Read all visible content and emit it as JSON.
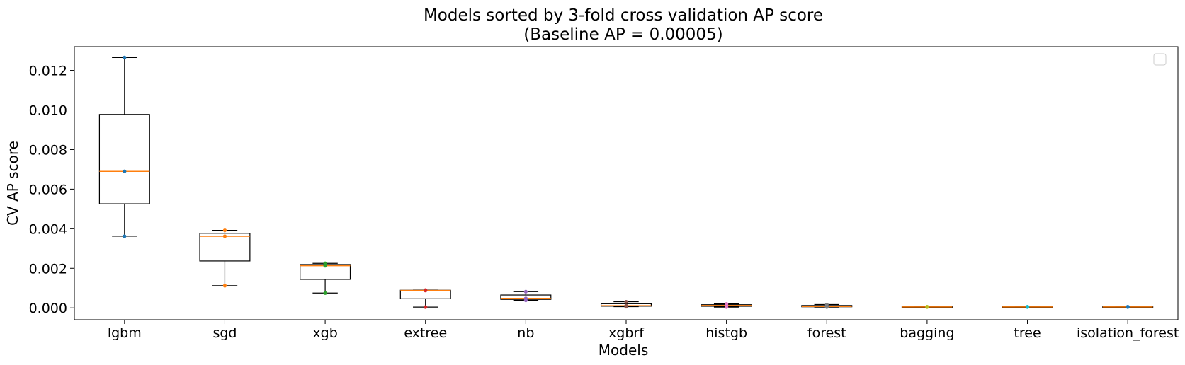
{
  "chart_data": {
    "type": "box",
    "title_lines": [
      "Models sorted by 3-fold cross validation AP score",
      "(Baseline AP = 0.00005)"
    ],
    "xlabel": "Models",
    "ylabel": "CV AP score",
    "ylim": [
      -0.0006,
      0.0132
    ],
    "yticks": [
      0.0,
      0.002,
      0.004,
      0.006,
      0.008,
      0.01,
      0.012
    ],
    "ytick_labels": [
      "0.000",
      "0.002",
      "0.004",
      "0.006",
      "0.008",
      "0.010",
      "0.012"
    ],
    "legend": {
      "position": "top-right",
      "entries": []
    },
    "grid": false,
    "categories": [
      "lgbm",
      "sgd",
      "xgb",
      "extree",
      "nb",
      "xgbrf",
      "histgb",
      "forest",
      "bagging",
      "tree",
      "isolation_forest"
    ],
    "folds": [
      [
        0.01265,
        0.0069,
        0.00362
      ],
      [
        0.00392,
        0.00362,
        0.00112
      ],
      [
        0.00225,
        0.00213,
        0.00075
      ],
      [
        0.0009,
        0.00088,
        4e-05
      ],
      [
        0.00082,
        0.00048,
        0.00038
      ],
      [
        0.00031,
        0.00011,
        6e-05
      ],
      [
        0.0002,
        0.00012,
        4e-05
      ],
      [
        0.00017,
        7e-05,
        4e-05
      ],
      [
        6e-05,
        5e-05,
        4e-05
      ],
      [
        6e-05,
        5e-05,
        4e-05
      ],
      [
        6e-05,
        5e-05,
        4e-05
      ]
    ],
    "colors": {
      "box": "#000000",
      "median": "#ff7f0e",
      "points": [
        "#1f77b4",
        "#ff7f0e",
        "#2ca02c",
        "#d62728",
        "#9467bd",
        "#8c564b",
        "#e377c2",
        "#7f7f7f",
        "#bcbd22",
        "#17becf",
        "#1f77b4"
      ]
    }
  }
}
